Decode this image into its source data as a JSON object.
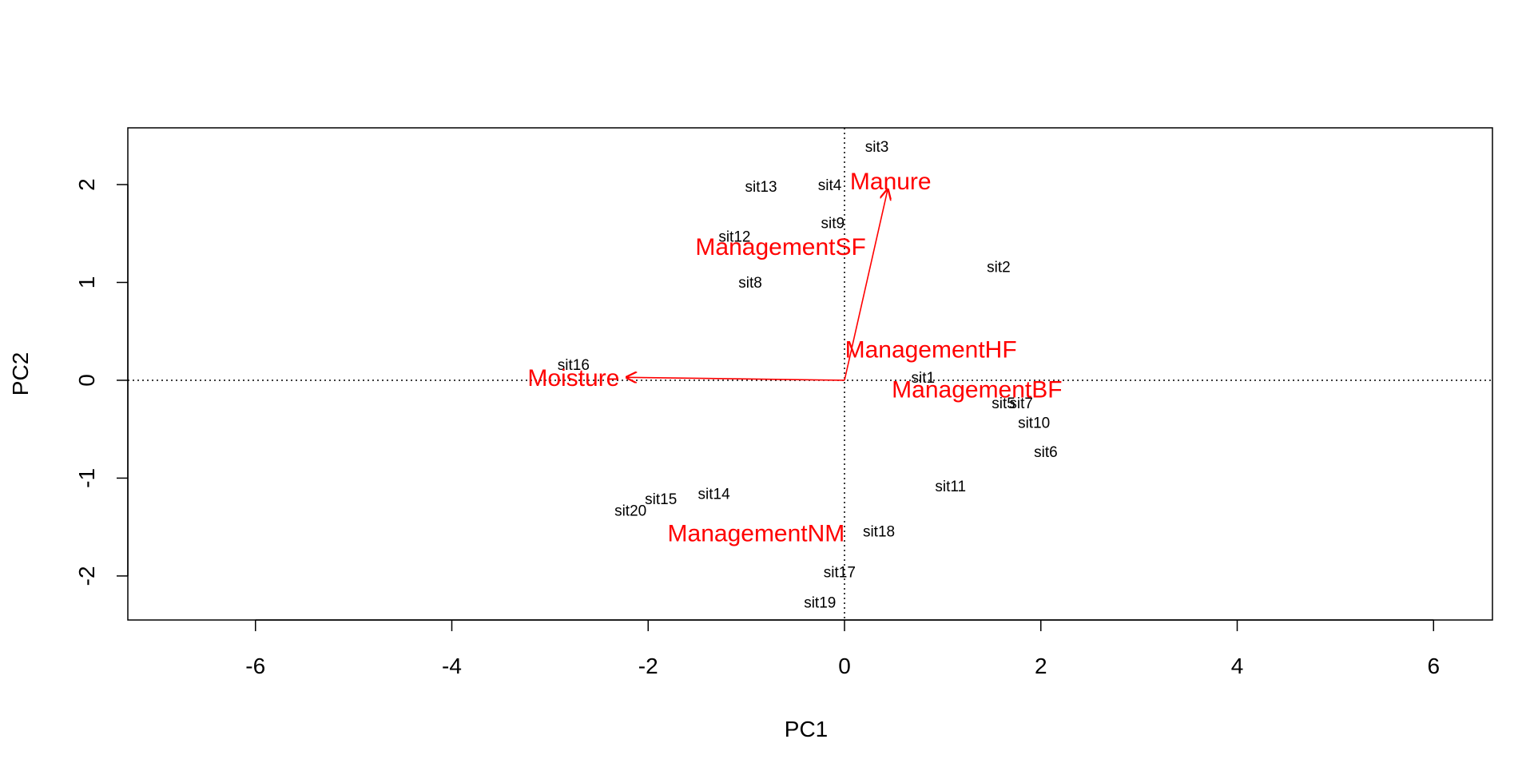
{
  "chart_data": {
    "type": "scatter",
    "xlabel": "PC1",
    "ylabel": "PC2",
    "xlim": [
      -7.3,
      6.6
    ],
    "ylim": [
      -2.45,
      2.58
    ],
    "xticks": [
      -6,
      -4,
      -2,
      0,
      2,
      4,
      6
    ],
    "yticks": [
      -2,
      -1,
      0,
      1,
      2
    ],
    "reference_lines": {
      "x": 0,
      "y": 0,
      "style": "dotted"
    },
    "sites": [
      {
        "label": "sit1",
        "x": 0.8,
        "y": 0.02
      },
      {
        "label": "sit2",
        "x": 1.57,
        "y": 1.15
      },
      {
        "label": "sit3",
        "x": 0.33,
        "y": 2.38
      },
      {
        "label": "sit4",
        "x": -0.15,
        "y": 1.99
      },
      {
        "label": "sit5",
        "x": 1.62,
        "y": -0.24
      },
      {
        "label": "sit6",
        "x": 2.05,
        "y": -0.74
      },
      {
        "label": "sit7",
        "x": 1.8,
        "y": -0.24
      },
      {
        "label": "sit8",
        "x": -0.96,
        "y": 0.99
      },
      {
        "label": "sit9",
        "x": -0.12,
        "y": 1.6
      },
      {
        "label": "sit10",
        "x": 1.93,
        "y": -0.44
      },
      {
        "label": "sit11",
        "x": 1.08,
        "y": -1.09
      },
      {
        "label": "sit12",
        "x": -1.12,
        "y": 1.46
      },
      {
        "label": "sit13",
        "x": -0.85,
        "y": 1.97
      },
      {
        "label": "sit14",
        "x": -1.33,
        "y": -1.17
      },
      {
        "label": "sit15",
        "x": -1.87,
        "y": -1.22
      },
      {
        "label": "sit16",
        "x": -2.76,
        "y": 0.15
      },
      {
        "label": "sit17",
        "x": -0.05,
        "y": -1.97
      },
      {
        "label": "sit18",
        "x": 0.35,
        "y": -1.55
      },
      {
        "label": "sit19",
        "x": -0.25,
        "y": -2.28
      },
      {
        "label": "sit20",
        "x": -2.18,
        "y": -1.34
      }
    ],
    "variables": [
      {
        "label": "Manure",
        "x": 0.47,
        "y": 2.03,
        "arrow": true,
        "arrow_x": 0.44,
        "arrow_y": 1.95
      },
      {
        "label": "Moisture",
        "x": -2.76,
        "y": 0.02,
        "arrow": true,
        "arrow_x": -2.22,
        "arrow_y": 0.03
      },
      {
        "label": "ManagementSF",
        "x": -0.65,
        "y": 1.36,
        "arrow": false
      },
      {
        "label": "ManagementHF",
        "x": 0.88,
        "y": 0.31,
        "arrow": false
      },
      {
        "label": "ManagementBF",
        "x": 1.35,
        "y": -0.1,
        "arrow": false
      },
      {
        "label": "ManagementNM",
        "x": -0.9,
        "y": -1.57,
        "arrow": false
      }
    ],
    "colors": {
      "sites": "#000000",
      "variables": "#ff0000",
      "axes": "#000000"
    }
  }
}
